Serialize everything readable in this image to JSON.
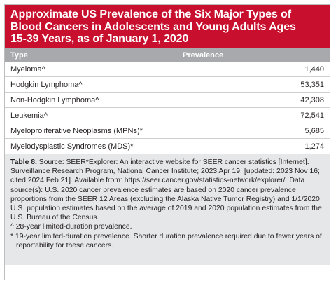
{
  "title_lines": [
    "Approximate US Prevalence of the Six Major Types of",
    "Blood Cancers in Adolescents and Young Adults Ages",
    "15-39 Years, as of January 1, 2020"
  ],
  "table": {
    "headers": [
      "Type",
      "Prevalence"
    ],
    "rows": [
      {
        "type": "Myeloma^",
        "prevalence": "1,440"
      },
      {
        "type": "Hodgkin Lymphoma^",
        "prevalence": "53,351"
      },
      {
        "type": "Non-Hodgkin Lymphoma^",
        "prevalence": "42,308"
      },
      {
        "type": "Leukemia^",
        "prevalence": "72,541"
      },
      {
        "type": "Myeloproliferative Neoplasms (MPNs)*",
        "prevalence": "5,685"
      },
      {
        "type": "Myelodysplastic Syndromes (MDS)*",
        "prevalence": "1,274"
      }
    ]
  },
  "notes": {
    "label": "Table 8.",
    "source": " Source: SEER*Explorer: An interactive website for SEER cancer statistics [Internet]. Surveillance Research Program, National Cancer Institute; 2023 Apr 19. [updated: 2023 Nov 16; cited 2024 Feb 21]. Available from: https://seer.cancer.gov/statistics-network/explorer/. Data source(s): U.S. 2020 cancer prevalence estimates are based on 2020 cancer prevalence proportions from the SEER 12 Areas (excluding the Alaska Native Tumor Registry) and 1/1/2020 U.S. population estimates based on the average of 2019 and 2020 population estimates from the U.S. Bureau of the Census.",
    "footnote_caret": "^ 28-year limited-duration prevalence.",
    "footnote_star": "* 19-year limited-duration prevalence. Shorter duration prevalence required due to fewer years of reportability for these cancers."
  }
}
